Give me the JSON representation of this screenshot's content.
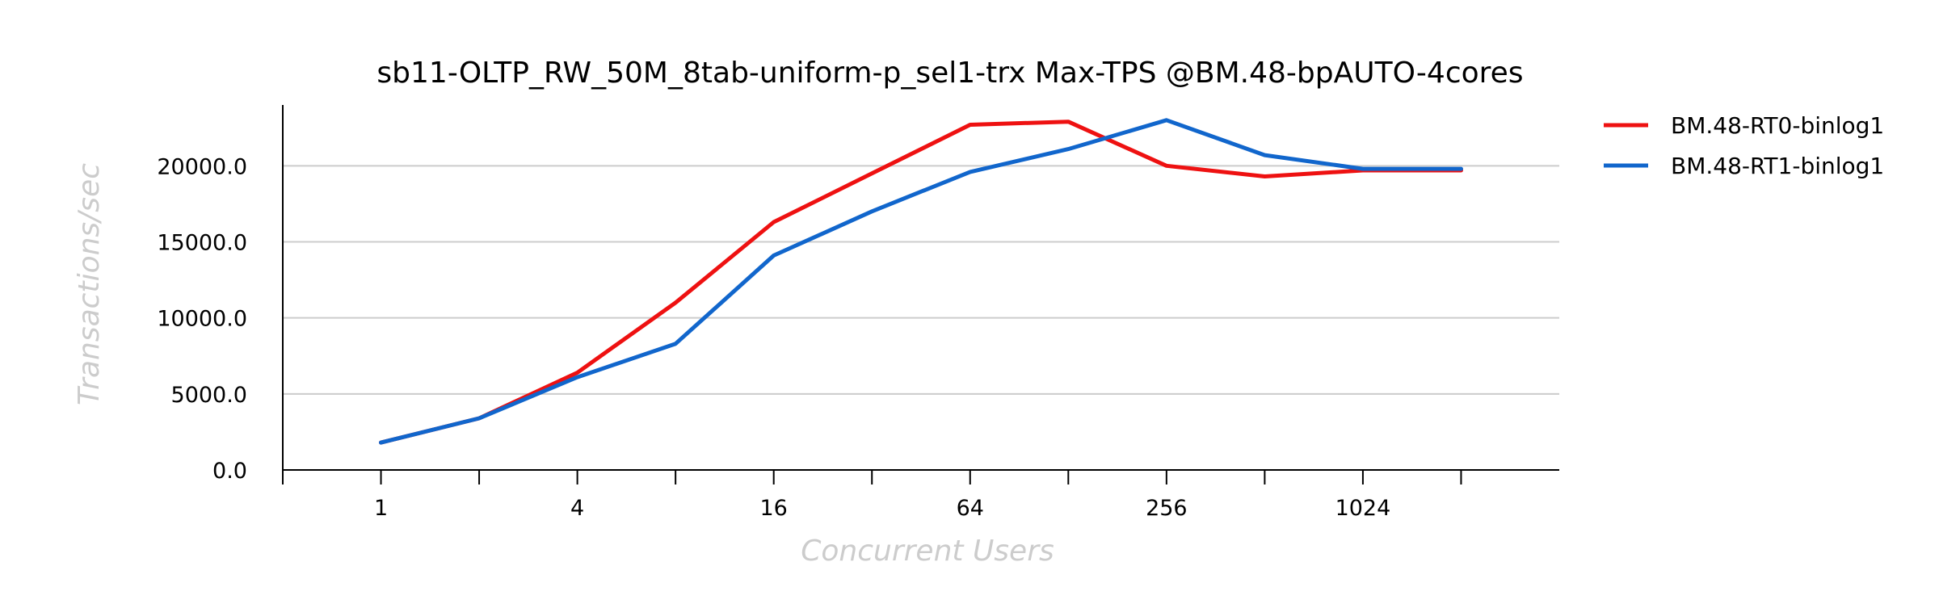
{
  "chart_data": {
    "type": "line",
    "title": "sb11-OLTP_RW_50M_8tab-uniform-p_sel1-trx Max-TPS @BM.48-bpAUTO-4cores",
    "xlabel": "Concurrent Users",
    "ylabel": "Transactions/sec",
    "x": [
      1,
      2,
      4,
      8,
      16,
      32,
      64,
      128,
      256,
      512,
      1024,
      2048
    ],
    "x_scale": "log2",
    "xticklabels": [
      "1",
      "4",
      "16",
      "64",
      "256",
      "1024"
    ],
    "xticklabel_values": [
      1,
      4,
      16,
      64,
      256,
      1024
    ],
    "yticks": [
      0,
      5000,
      10000,
      15000,
      20000
    ],
    "yticklabels": [
      "0.0",
      "5000.0",
      "10000.0",
      "15000.0",
      "20000.0"
    ],
    "ylim": [
      0,
      24000
    ],
    "xlim": [
      0.5,
      4096
    ],
    "grid": "horizontal",
    "legend_position": "right",
    "series": [
      {
        "name": "BM.48-RT0-binlog1",
        "color": "#ee1111",
        "values": [
          1800,
          3400,
          6400,
          11000,
          16300,
          19500,
          22700,
          22900,
          20000,
          19300,
          19700,
          19700
        ]
      },
      {
        "name": "BM.48-RT1-binlog1",
        "color": "#1166cc",
        "values": [
          1800,
          3400,
          6100,
          8300,
          14100,
          17000,
          19600,
          21100,
          23000,
          20700,
          19800,
          19800
        ]
      }
    ]
  }
}
